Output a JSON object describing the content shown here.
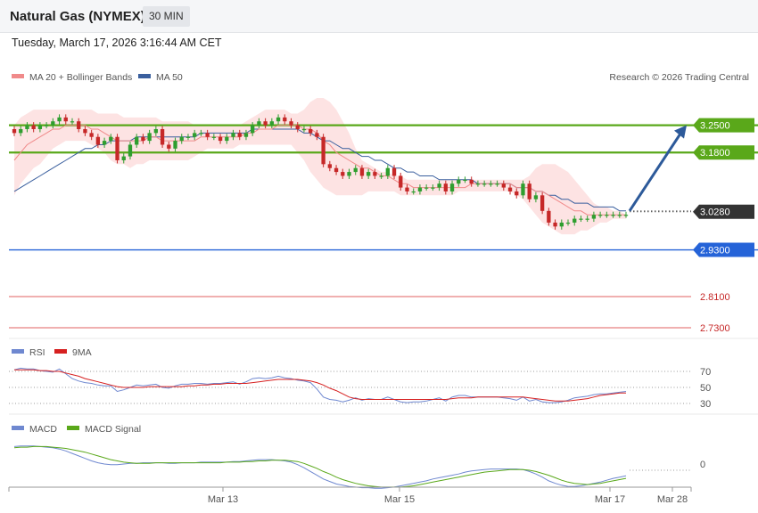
{
  "header": {
    "instrument": "Natural Gas (NYMEX)",
    "timeframe": "30 MIN",
    "datetime": "Tuesday, March 17, 2026 3:16:44 AM CET"
  },
  "copyright": "Research © 2026 Trading Central",
  "colors": {
    "up": "#2f9e2f",
    "down": "#c62828",
    "ma20": "#f08a8a",
    "ma50": "#3a5f9e",
    "bollinger": "#fde0e0",
    "resistance": "#5aa81a",
    "pivot": "#2563d8",
    "support": "#e06262",
    "current": "#333333",
    "rsi": "#6f88d0",
    "rsi_ma": "#d62020",
    "macd": "#6f88d0",
    "macd_signal": "#5aa81a",
    "arrow": "#2d5a9a"
  },
  "chart_data": [
    {
      "type": "candlestick",
      "legend": [
        "MA 20 + Bollinger Bands",
        "MA 50"
      ],
      "ylim": [
        2.7,
        3.36
      ],
      "x_ticks": [
        "Mar 13",
        "Mar 15",
        "Mar 17",
        "Mar 28"
      ],
      "price_levels": [
        {
          "kind": "resistance",
          "value": "3.2500"
        },
        {
          "kind": "resistance",
          "value": "3.1800"
        },
        {
          "kind": "current",
          "value": "3.0280"
        },
        {
          "kind": "pivot",
          "value": "2.9300"
        },
        {
          "kind": "support",
          "value": "2.8100"
        },
        {
          "kind": "support",
          "value": "2.7300"
        }
      ],
      "close": [
        3.23,
        3.24,
        3.25,
        3.24,
        3.25,
        3.25,
        3.26,
        3.27,
        3.26,
        3.26,
        3.24,
        3.23,
        3.22,
        3.2,
        3.21,
        3.22,
        3.16,
        3.17,
        3.2,
        3.22,
        3.21,
        3.23,
        3.24,
        3.2,
        3.19,
        3.21,
        3.22,
        3.22,
        3.23,
        3.23,
        3.22,
        3.22,
        3.21,
        3.22,
        3.23,
        3.22,
        3.23,
        3.25,
        3.26,
        3.25,
        3.26,
        3.27,
        3.26,
        3.25,
        3.24,
        3.24,
        3.23,
        3.22,
        3.15,
        3.14,
        3.13,
        3.12,
        3.13,
        3.14,
        3.12,
        3.13,
        3.12,
        3.12,
        3.14,
        3.12,
        3.09,
        3.08,
        3.08,
        3.09,
        3.09,
        3.09,
        3.1,
        3.08,
        3.1,
        3.11,
        3.11,
        3.1,
        3.1,
        3.1,
        3.1,
        3.1,
        3.09,
        3.08,
        3.07,
        3.1,
        3.06,
        3.07,
        3.03,
        3.0,
        2.99,
        3.0,
        3.0,
        3.01,
        3.01,
        3.01,
        3.02,
        3.02,
        3.02,
        3.02,
        3.02,
        3.02
      ],
      "open": [
        3.24,
        3.23,
        3.24,
        3.25,
        3.24,
        3.25,
        3.25,
        3.26,
        3.27,
        3.26,
        3.26,
        3.24,
        3.23,
        3.22,
        3.2,
        3.21,
        3.22,
        3.16,
        3.17,
        3.2,
        3.22,
        3.21,
        3.23,
        3.24,
        3.2,
        3.19,
        3.21,
        3.22,
        3.22,
        3.23,
        3.23,
        3.22,
        3.22,
        3.21,
        3.22,
        3.23,
        3.22,
        3.23,
        3.25,
        3.26,
        3.25,
        3.26,
        3.27,
        3.26,
        3.25,
        3.24,
        3.24,
        3.23,
        3.22,
        3.15,
        3.14,
        3.13,
        3.12,
        3.13,
        3.14,
        3.12,
        3.13,
        3.12,
        3.12,
        3.14,
        3.12,
        3.09,
        3.08,
        3.08,
        3.09,
        3.09,
        3.09,
        3.1,
        3.08,
        3.1,
        3.11,
        3.11,
        3.1,
        3.1,
        3.1,
        3.1,
        3.1,
        3.09,
        3.08,
        3.07,
        3.1,
        3.06,
        3.07,
        3.03,
        3.0,
        2.99,
        3.0,
        3.0,
        3.01,
        3.01,
        3.01,
        3.02,
        3.02,
        3.02,
        3.02,
        3.02
      ],
      "ma20": [
        3.16,
        3.18,
        3.2,
        3.21,
        3.22,
        3.23,
        3.24,
        3.24,
        3.25,
        3.25,
        3.25,
        3.25,
        3.24,
        3.24,
        3.23,
        3.22,
        3.21,
        3.21,
        3.21,
        3.21,
        3.21,
        3.22,
        3.22,
        3.21,
        3.21,
        3.21,
        3.21,
        3.21,
        3.21,
        3.22,
        3.22,
        3.22,
        3.22,
        3.22,
        3.22,
        3.22,
        3.23,
        3.23,
        3.24,
        3.24,
        3.24,
        3.25,
        3.25,
        3.25,
        3.25,
        3.24,
        3.24,
        3.23,
        3.21,
        3.2,
        3.18,
        3.17,
        3.16,
        3.15,
        3.14,
        3.14,
        3.13,
        3.12,
        3.12,
        3.11,
        3.1,
        3.1,
        3.09,
        3.09,
        3.09,
        3.09,
        3.09,
        3.09,
        3.09,
        3.09,
        3.09,
        3.1,
        3.1,
        3.1,
        3.1,
        3.1,
        3.1,
        3.1,
        3.09,
        3.09,
        3.09,
        3.08,
        3.08,
        3.07,
        3.06,
        3.05,
        3.04,
        3.03,
        3.03,
        3.02,
        3.02,
        3.02,
        3.02,
        3.02,
        3.02,
        3.02
      ],
      "ma50": [
        3.08,
        3.09,
        3.1,
        3.11,
        3.12,
        3.13,
        3.14,
        3.15,
        3.16,
        3.17,
        3.18,
        3.19,
        3.19,
        3.2,
        3.2,
        3.21,
        3.21,
        3.21,
        3.21,
        3.22,
        3.22,
        3.22,
        3.22,
        3.22,
        3.22,
        3.22,
        3.22,
        3.22,
        3.22,
        3.23,
        3.23,
        3.23,
        3.23,
        3.23,
        3.23,
        3.23,
        3.23,
        3.24,
        3.24,
        3.24,
        3.24,
        3.24,
        3.24,
        3.24,
        3.24,
        3.23,
        3.23,
        3.22,
        3.21,
        3.21,
        3.2,
        3.19,
        3.19,
        3.18,
        3.17,
        3.17,
        3.16,
        3.16,
        3.15,
        3.14,
        3.14,
        3.13,
        3.13,
        3.12,
        3.12,
        3.12,
        3.11,
        3.11,
        3.11,
        3.11,
        3.11,
        3.11,
        3.1,
        3.1,
        3.1,
        3.1,
        3.1,
        3.1,
        3.09,
        3.09,
        3.09,
        3.08,
        3.08,
        3.07,
        3.07,
        3.06,
        3.06,
        3.05,
        3.05,
        3.05,
        3.04,
        3.04,
        3.04,
        3.04,
        3.03,
        3.03
      ],
      "bb_upper": [
        3.25,
        3.27,
        3.28,
        3.29,
        3.29,
        3.29,
        3.29,
        3.29,
        3.29,
        3.29,
        3.29,
        3.29,
        3.29,
        3.28,
        3.28,
        3.28,
        3.28,
        3.27,
        3.27,
        3.27,
        3.27,
        3.27,
        3.27,
        3.26,
        3.26,
        3.26,
        3.26,
        3.26,
        3.25,
        3.25,
        3.25,
        3.25,
        3.25,
        3.25,
        3.25,
        3.25,
        3.26,
        3.27,
        3.28,
        3.29,
        3.29,
        3.29,
        3.29,
        3.28,
        3.28,
        3.29,
        3.31,
        3.32,
        3.32,
        3.31,
        3.29,
        3.26,
        3.23,
        3.19,
        3.16,
        3.15,
        3.14,
        3.13,
        3.13,
        3.12,
        3.12,
        3.11,
        3.11,
        3.11,
        3.11,
        3.11,
        3.11,
        3.11,
        3.11,
        3.11,
        3.11,
        3.11,
        3.11,
        3.11,
        3.11,
        3.11,
        3.11,
        3.11,
        3.11,
        3.11,
        3.12,
        3.14,
        3.15,
        3.15,
        3.15,
        3.14,
        3.13,
        3.11,
        3.09,
        3.07,
        3.05,
        3.04,
        3.04,
        3.03,
        3.03,
        3.02
      ],
      "bb_lower": [
        3.07,
        3.1,
        3.12,
        3.14,
        3.15,
        3.17,
        3.19,
        3.2,
        3.21,
        3.21,
        3.21,
        3.21,
        3.2,
        3.19,
        3.18,
        3.16,
        3.15,
        3.15,
        3.14,
        3.15,
        3.15,
        3.16,
        3.16,
        3.16,
        3.16,
        3.16,
        3.16,
        3.16,
        3.17,
        3.18,
        3.19,
        3.19,
        3.19,
        3.19,
        3.19,
        3.2,
        3.2,
        3.2,
        3.2,
        3.2,
        3.2,
        3.2,
        3.2,
        3.2,
        3.18,
        3.16,
        3.13,
        3.11,
        3.09,
        3.08,
        3.07,
        3.07,
        3.07,
        3.07,
        3.07,
        3.08,
        3.08,
        3.08,
        3.08,
        3.08,
        3.07,
        3.07,
        3.07,
        3.07,
        3.07,
        3.07,
        3.07,
        3.07,
        3.07,
        3.08,
        3.08,
        3.08,
        3.08,
        3.08,
        3.08,
        3.08,
        3.08,
        3.08,
        3.07,
        3.06,
        3.04,
        3.02,
        3.0,
        2.99,
        2.98,
        2.97,
        2.97,
        2.97,
        2.98,
        2.98,
        2.99,
        3.0,
        3.0,
        3.01,
        3.01,
        3.01
      ],
      "projection": {
        "from": 3.03,
        "to": 3.25
      }
    },
    {
      "type": "line",
      "legend": [
        "RSI",
        "9MA"
      ],
      "ylim": [
        20,
        80
      ],
      "y_ticks": [
        "70",
        "50",
        "30"
      ],
      "rsi": [
        72,
        74,
        73,
        73,
        71,
        70,
        69,
        73,
        67,
        61,
        58,
        56,
        55,
        53,
        52,
        52,
        45,
        47,
        50,
        53,
        52,
        53,
        54,
        50,
        49,
        52,
        54,
        54,
        55,
        55,
        54,
        55,
        55,
        56,
        57,
        54,
        57,
        61,
        62,
        61,
        62,
        64,
        62,
        61,
        59,
        58,
        56,
        48,
        38,
        35,
        34,
        32,
        34,
        37,
        34,
        36,
        35,
        35,
        38,
        35,
        32,
        31,
        32,
        32,
        33,
        35,
        37,
        33,
        38,
        40,
        40,
        38,
        38,
        38,
        38,
        38,
        37,
        36,
        34,
        38,
        33,
        35,
        32,
        31,
        31,
        32,
        34,
        37,
        38,
        39,
        41,
        42,
        42,
        43,
        44,
        45
      ],
      "rsi_ma": [
        72,
        72,
        72,
        72,
        71,
        71,
        70,
        70,
        68,
        66,
        64,
        61,
        59,
        57,
        55,
        53,
        51,
        50,
        50,
        50,
        50,
        51,
        51,
        51,
        51,
        51,
        51,
        52,
        52,
        53,
        53,
        54,
        54,
        55,
        55,
        55,
        55,
        56,
        57,
        58,
        59,
        60,
        60,
        60,
        60,
        59,
        58,
        56,
        53,
        49,
        46,
        42,
        38,
        36,
        35,
        35,
        35,
        35,
        35,
        35,
        35,
        35,
        35,
        35,
        35,
        35,
        35,
        35,
        36,
        37,
        37,
        37,
        38,
        38,
        38,
        38,
        38,
        38,
        38,
        38,
        37,
        36,
        35,
        34,
        33,
        33,
        33,
        34,
        35,
        36,
        38,
        40,
        41,
        42,
        43,
        43
      ]
    },
    {
      "type": "line",
      "legend": [
        "MACD",
        "MACD Signal"
      ],
      "ylim": [
        -0.045,
        0.035
      ],
      "y_ticks": [
        "0"
      ],
      "macd": [
        0.028,
        0.029,
        0.029,
        0.029,
        0.028,
        0.027,
        0.026,
        0.024,
        0.021,
        0.017,
        0.013,
        0.009,
        0.005,
        0.002,
        0.0,
        -0.001,
        -0.001,
        0.0,
        0.001,
        0.001,
        0.002,
        0.002,
        0.002,
        0.002,
        0.001,
        0.001,
        0.002,
        0.002,
        0.002,
        0.003,
        0.003,
        0.003,
        0.003,
        0.003,
        0.004,
        0.004,
        0.005,
        0.006,
        0.007,
        0.007,
        0.007,
        0.006,
        0.005,
        0.003,
        -0.001,
        -0.006,
        -0.012,
        -0.018,
        -0.024,
        -0.028,
        -0.032,
        -0.034,
        -0.036,
        -0.037,
        -0.038,
        -0.038,
        -0.039,
        -0.039,
        -0.038,
        -0.037,
        -0.035,
        -0.033,
        -0.031,
        -0.029,
        -0.027,
        -0.024,
        -0.022,
        -0.02,
        -0.018,
        -0.016,
        -0.013,
        -0.011,
        -0.01,
        -0.009,
        -0.008,
        -0.008,
        -0.008,
        -0.008,
        -0.008,
        -0.009,
        -0.012,
        -0.016,
        -0.021,
        -0.027,
        -0.031,
        -0.034,
        -0.036,
        -0.036,
        -0.035,
        -0.033,
        -0.031,
        -0.029,
        -0.026,
        -0.023,
        -0.021,
        -0.019
      ],
      "signal": [
        0.026,
        0.027,
        0.027,
        0.028,
        0.028,
        0.028,
        0.027,
        0.026,
        0.025,
        0.023,
        0.021,
        0.019,
        0.016,
        0.013,
        0.01,
        0.007,
        0.005,
        0.003,
        0.002,
        0.001,
        0.001,
        0.001,
        0.002,
        0.002,
        0.002,
        0.002,
        0.002,
        0.002,
        0.002,
        0.002,
        0.002,
        0.002,
        0.002,
        0.003,
        0.003,
        0.003,
        0.004,
        0.004,
        0.005,
        0.005,
        0.006,
        0.006,
        0.006,
        0.005,
        0.004,
        0.001,
        -0.003,
        -0.007,
        -0.012,
        -0.016,
        -0.021,
        -0.025,
        -0.028,
        -0.031,
        -0.033,
        -0.035,
        -0.036,
        -0.037,
        -0.037,
        -0.037,
        -0.037,
        -0.036,
        -0.035,
        -0.033,
        -0.031,
        -0.029,
        -0.027,
        -0.025,
        -0.023,
        -0.021,
        -0.019,
        -0.017,
        -0.015,
        -0.013,
        -0.012,
        -0.011,
        -0.01,
        -0.009,
        -0.009,
        -0.009,
        -0.01,
        -0.012,
        -0.015,
        -0.018,
        -0.022,
        -0.026,
        -0.029,
        -0.031,
        -0.032,
        -0.033,
        -0.032,
        -0.031,
        -0.029,
        -0.027,
        -0.025,
        -0.023
      ]
    }
  ]
}
